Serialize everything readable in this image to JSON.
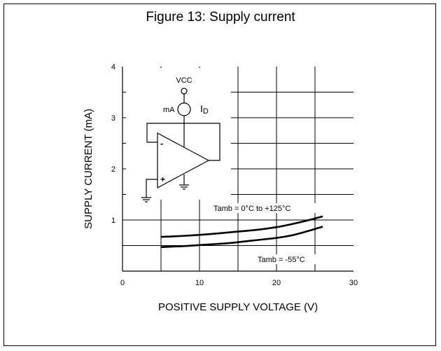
{
  "title": "Figure 13: Supply current",
  "chart_data": {
    "type": "line",
    "xlabel": "POSITIVE SUPPLY VOLTAGE (V)",
    "ylabel": "SUPPLY CURRENT (mA)",
    "xlim": [
      0,
      30
    ],
    "ylim": [
      0,
      4
    ],
    "xticks": [
      "0",
      "10",
      "20",
      "30"
    ],
    "yticks": [
      "1",
      "2",
      "3",
      "4"
    ],
    "grid": true,
    "series": [
      {
        "name": "Tamb = 0°C to +125°C",
        "x": [
          5,
          8,
          11,
          14,
          17,
          20,
          22,
          24,
          26
        ],
        "y": [
          0.67,
          0.69,
          0.72,
          0.76,
          0.8,
          0.86,
          0.92,
          0.99,
          1.07
        ]
      },
      {
        "name": "Tamb = -55°C",
        "x": [
          5,
          8,
          11,
          14,
          17,
          20,
          22,
          24,
          26
        ],
        "y": [
          0.47,
          0.49,
          0.52,
          0.55,
          0.6,
          0.65,
          0.7,
          0.78,
          0.87
        ]
      }
    ]
  },
  "circuit": {
    "vcc": "VCC",
    "meter": "mA",
    "current_label": "I",
    "current_sub": "D",
    "minus": "-",
    "plus": "+"
  }
}
